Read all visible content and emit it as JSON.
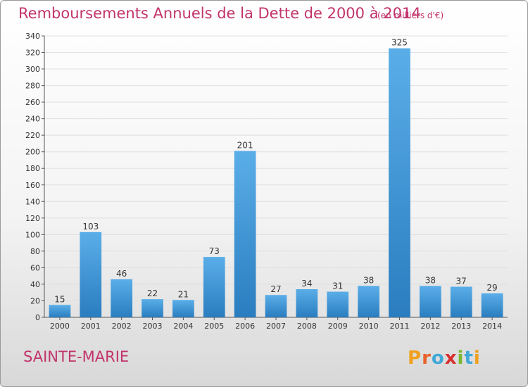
{
  "header": {
    "title": "Remboursements Annuels de la Dette de 2000 à 2014",
    "unit": "(en milliers d'€)"
  },
  "footer": {
    "location": "SAINTE-MARIE",
    "brand": "Proxiti"
  },
  "colors": {
    "title": "#c2346b",
    "bar_top": "#5aaee8",
    "bar_bottom": "#2a7dbf",
    "grid": "#e0e0e0"
  },
  "chart_data": {
    "type": "bar",
    "categories": [
      "2000",
      "2001",
      "2002",
      "2003",
      "2004",
      "2005",
      "2006",
      "2007",
      "2008",
      "2009",
      "2010",
      "2011",
      "2012",
      "2013",
      "2014"
    ],
    "values": [
      15,
      103,
      46,
      22,
      21,
      73,
      201,
      27,
      34,
      31,
      38,
      325,
      38,
      37,
      29
    ],
    "title": "Remboursements Annuels de la Dette de 2000 à 2014",
    "ylim": [
      0,
      340
    ],
    "yticks": [
      0,
      20,
      40,
      60,
      80,
      100,
      120,
      140,
      160,
      180,
      200,
      220,
      240,
      260,
      280,
      300,
      320,
      340
    ],
    "grid": true,
    "data_labels": true
  }
}
